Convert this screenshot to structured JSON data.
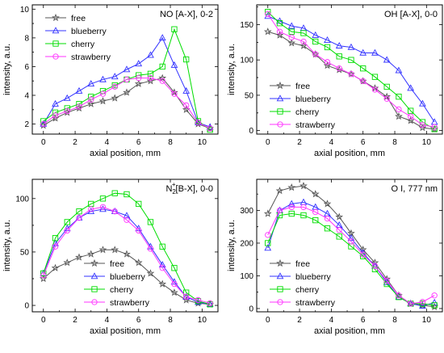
{
  "chart_data": [
    {
      "type": "line",
      "title": "NO [A-X], 0-2",
      "title_sup": "",
      "title_sub": "",
      "title_rest": "",
      "xlabel": "axial position, mm",
      "ylabel": "intensity, a.u.",
      "xlim": [
        -0.7,
        11
      ],
      "ylim": [
        1.3,
        10.3
      ],
      "xticks": [
        0,
        2,
        4,
        6,
        8,
        10
      ],
      "yticks": [
        2,
        4,
        6,
        8,
        10
      ],
      "legend": "top-left",
      "x": [
        0,
        0.75,
        1.5,
        2.25,
        3,
        3.75,
        4.5,
        5.25,
        6,
        6.75,
        7.5,
        8.25,
        9,
        9.75,
        10.5
      ],
      "series": [
        {
          "name": "free",
          "color": "#555555",
          "marker": "star",
          "values": [
            1.9,
            2.4,
            2.8,
            3.1,
            3.4,
            3.6,
            3.8,
            4.2,
            4.8,
            5.0,
            5.2,
            4.2,
            3.0,
            2.0,
            1.7
          ]
        },
        {
          "name": "blueberry",
          "color": "#3333ff",
          "marker": "triangle",
          "values": [
            2.0,
            3.4,
            3.8,
            4.3,
            4.8,
            5.1,
            5.3,
            5.8,
            6.2,
            6.8,
            8.0,
            6.1,
            4.3,
            2.1,
            1.8
          ]
        },
        {
          "name": "cherry",
          "color": "#00dd00",
          "marker": "square",
          "values": [
            2.2,
            2.8,
            3.1,
            3.4,
            3.9,
            4.3,
            4.7,
            5.1,
            5.4,
            5.5,
            6.0,
            8.6,
            6.5,
            2.2,
            1.6
          ]
        },
        {
          "name": "strawberry",
          "color": "#ff33ff",
          "marker": "circle",
          "values": [
            2.0,
            2.6,
            2.9,
            3.2,
            3.7,
            4.1,
            4.6,
            5.1,
            5.2,
            5.2,
            5.0,
            4.1,
            3.3,
            2.1,
            1.7
          ]
        }
      ]
    },
    {
      "type": "line",
      "title": "OH [A-X], 0-0",
      "title_sup": "",
      "title_sub": "",
      "title_rest": "",
      "xlabel": "axial position, mm",
      "ylabel": "intensity, a.u.",
      "xlim": [
        -0.7,
        11
      ],
      "ylim": [
        -5,
        178
      ],
      "xticks": [
        0,
        2,
        4,
        6,
        8,
        10
      ],
      "yticks": [
        0,
        50,
        100,
        150
      ],
      "legend": "bottom-left",
      "x": [
        0,
        0.75,
        1.5,
        2.25,
        3,
        3.75,
        4.5,
        5.25,
        6,
        6.75,
        7.5,
        8.25,
        9,
        9.75,
        10.5
      ],
      "series": [
        {
          "name": "free",
          "color": "#555555",
          "marker": "star",
          "values": [
            140,
            135,
            124,
            120,
            108,
            92,
            86,
            80,
            70,
            60,
            48,
            20,
            14,
            4,
            2
          ]
        },
        {
          "name": "blueberry",
          "color": "#3333ff",
          "marker": "triangle",
          "values": [
            162,
            155,
            148,
            145,
            135,
            128,
            120,
            118,
            110,
            110,
            100,
            85,
            60,
            38,
            12
          ]
        },
        {
          "name": "cherry",
          "color": "#00dd00",
          "marker": "square",
          "values": [
            168,
            152,
            140,
            138,
            126,
            118,
            105,
            100,
            88,
            76,
            62,
            48,
            28,
            12,
            2
          ]
        },
        {
          "name": "strawberry",
          "color": "#ff33ff",
          "marker": "circle",
          "values": [
            165,
            140,
            132,
            126,
            108,
            97,
            88,
            80,
            70,
            58,
            45,
            30,
            20,
            8,
            5
          ]
        }
      ]
    },
    {
      "type": "line",
      "title": "N",
      "title_sup": "+",
      "title_sub": "2",
      "title_rest": "[B-X], 0-0",
      "xlabel": "axial position, mm",
      "ylabel": "intensity, a.u.",
      "xlim": [
        -0.7,
        11
      ],
      "ylim": [
        -6,
        118
      ],
      "xticks": [
        0,
        2,
        4,
        6,
        8,
        10
      ],
      "yticks": [
        0,
        50,
        100
      ],
      "legend": "bottom-right",
      "x": [
        0,
        0.75,
        1.5,
        2.25,
        3,
        3.75,
        4.5,
        5.25,
        6,
        6.75,
        7.5,
        8.25,
        9,
        9.75,
        10.5
      ],
      "series": [
        {
          "name": "free",
          "color": "#555555",
          "marker": "star",
          "values": [
            25,
            35,
            40,
            45,
            48,
            52,
            52,
            48,
            40,
            30,
            20,
            12,
            5,
            2,
            1
          ]
        },
        {
          "name": "blueberry",
          "color": "#3333ff",
          "marker": "triangle",
          "values": [
            30,
            58,
            72,
            82,
            88,
            90,
            88,
            84,
            72,
            55,
            38,
            22,
            8,
            3,
            1
          ]
        },
        {
          "name": "cherry",
          "color": "#00dd00",
          "marker": "square",
          "values": [
            30,
            63,
            78,
            88,
            95,
            100,
            105,
            104,
            95,
            78,
            55,
            35,
            12,
            4,
            1
          ]
        },
        {
          "name": "strawberry",
          "color": "#ff33ff",
          "marker": "circle",
          "values": [
            28,
            55,
            70,
            82,
            90,
            92,
            88,
            80,
            70,
            53,
            35,
            20,
            8,
            5,
            2
          ]
        }
      ]
    },
    {
      "type": "line",
      "title": "O I, 777 nm",
      "title_sup": "",
      "title_sub": "",
      "title_rest": "",
      "xlabel": "axial position, mm",
      "ylabel": "intensity, a.u.",
      "xlim": [
        -0.7,
        11
      ],
      "ylim": [
        -10,
        395
      ],
      "xticks": [
        0,
        2,
        4,
        6,
        8,
        10
      ],
      "yticks": [
        0,
        100,
        200,
        300
      ],
      "legend": "bottom-left",
      "x": [
        0,
        0.75,
        1.5,
        2.25,
        3,
        3.75,
        4.5,
        5.25,
        6,
        6.75,
        7.5,
        8.25,
        9,
        9.75,
        10.5
      ],
      "series": [
        {
          "name": "free",
          "color": "#555555",
          "marker": "star",
          "values": [
            290,
            360,
            370,
            375,
            350,
            320,
            280,
            230,
            180,
            140,
            90,
            40,
            15,
            10,
            5
          ]
        },
        {
          "name": "blueberry",
          "color": "#3333ff",
          "marker": "triangle",
          "values": [
            185,
            300,
            320,
            325,
            310,
            290,
            255,
            215,
            170,
            130,
            80,
            35,
            15,
            8,
            18
          ]
        },
        {
          "name": "cherry",
          "color": "#00dd00",
          "marker": "square",
          "values": [
            200,
            285,
            290,
            285,
            270,
            245,
            220,
            190,
            160,
            120,
            75,
            35,
            15,
            15,
            10
          ]
        },
        {
          "name": "strawberry",
          "color": "#ff33ff",
          "marker": "circle",
          "values": [
            225,
            300,
            310,
            310,
            295,
            275,
            240,
            205,
            165,
            130,
            85,
            40,
            15,
            20,
            40
          ]
        }
      ]
    }
  ]
}
